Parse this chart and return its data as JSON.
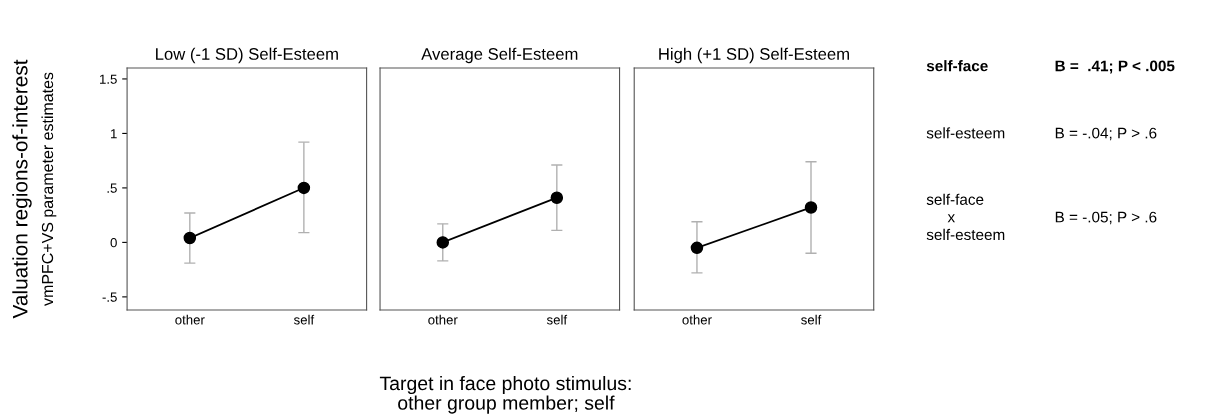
{
  "chart_data": [
    {
      "type": "line",
      "title": "Low (-1 SD) Self-Esteem",
      "ylabel": "Valuation regions-of-interest\nvmPFC+VS parameter estimates",
      "categories": [
        "other",
        "self"
      ],
      "series": [
        {
          "color": "#000000",
          "values": [
            0.04,
            0.5
          ],
          "errors": [
            [
              -0.19,
              0.27
            ],
            [
              0.09,
              0.92
            ]
          ]
        }
      ],
      "ylim": [
        -0.62,
        1.6
      ],
      "yticks": [
        {
          "value": -0.5,
          "label": "-.5"
        },
        0,
        {
          "value": 0.5,
          "label": ".5"
        },
        1,
        1.5
      ],
      "marker": "circle",
      "grid": false,
      "xlabel": "Target in face photo stimulus:\nother group member; self"
    },
    {
      "type": "line",
      "title": "Average Self-Esteem",
      "categories": [
        "other",
        "self"
      ],
      "series": [
        {
          "color": "#000000",
          "values": [
            0.0,
            0.41
          ],
          "errors": [
            [
              -0.17,
              0.17
            ],
            [
              0.11,
              0.71
            ]
          ]
        }
      ],
      "ylim": [
        -0.62,
        1.6
      ],
      "marker": "circle",
      "grid": false,
      "tick_labels": "x"
    },
    {
      "type": "line",
      "title": "High (+1 SD) Self-Esteem",
      "categories": [
        "other",
        "self"
      ],
      "series": [
        {
          "color": "#000000",
          "values": [
            -0.05,
            0.32
          ],
          "errors": [
            [
              -0.28,
              0.19
            ],
            [
              -0.1,
              0.74
            ]
          ]
        }
      ],
      "ylim": [
        -0.62,
        1.6
      ],
      "marker": "circle",
      "grid": false,
      "tick_labels": "x",
      "annotations": [
        "self-face",
        "B =  .41; P < .005",
        "self-esteem",
        "B = -.04; P > .6",
        "self-face\n     x\nself-esteem",
        "B = -.05; P > .6"
      ]
    }
  ]
}
